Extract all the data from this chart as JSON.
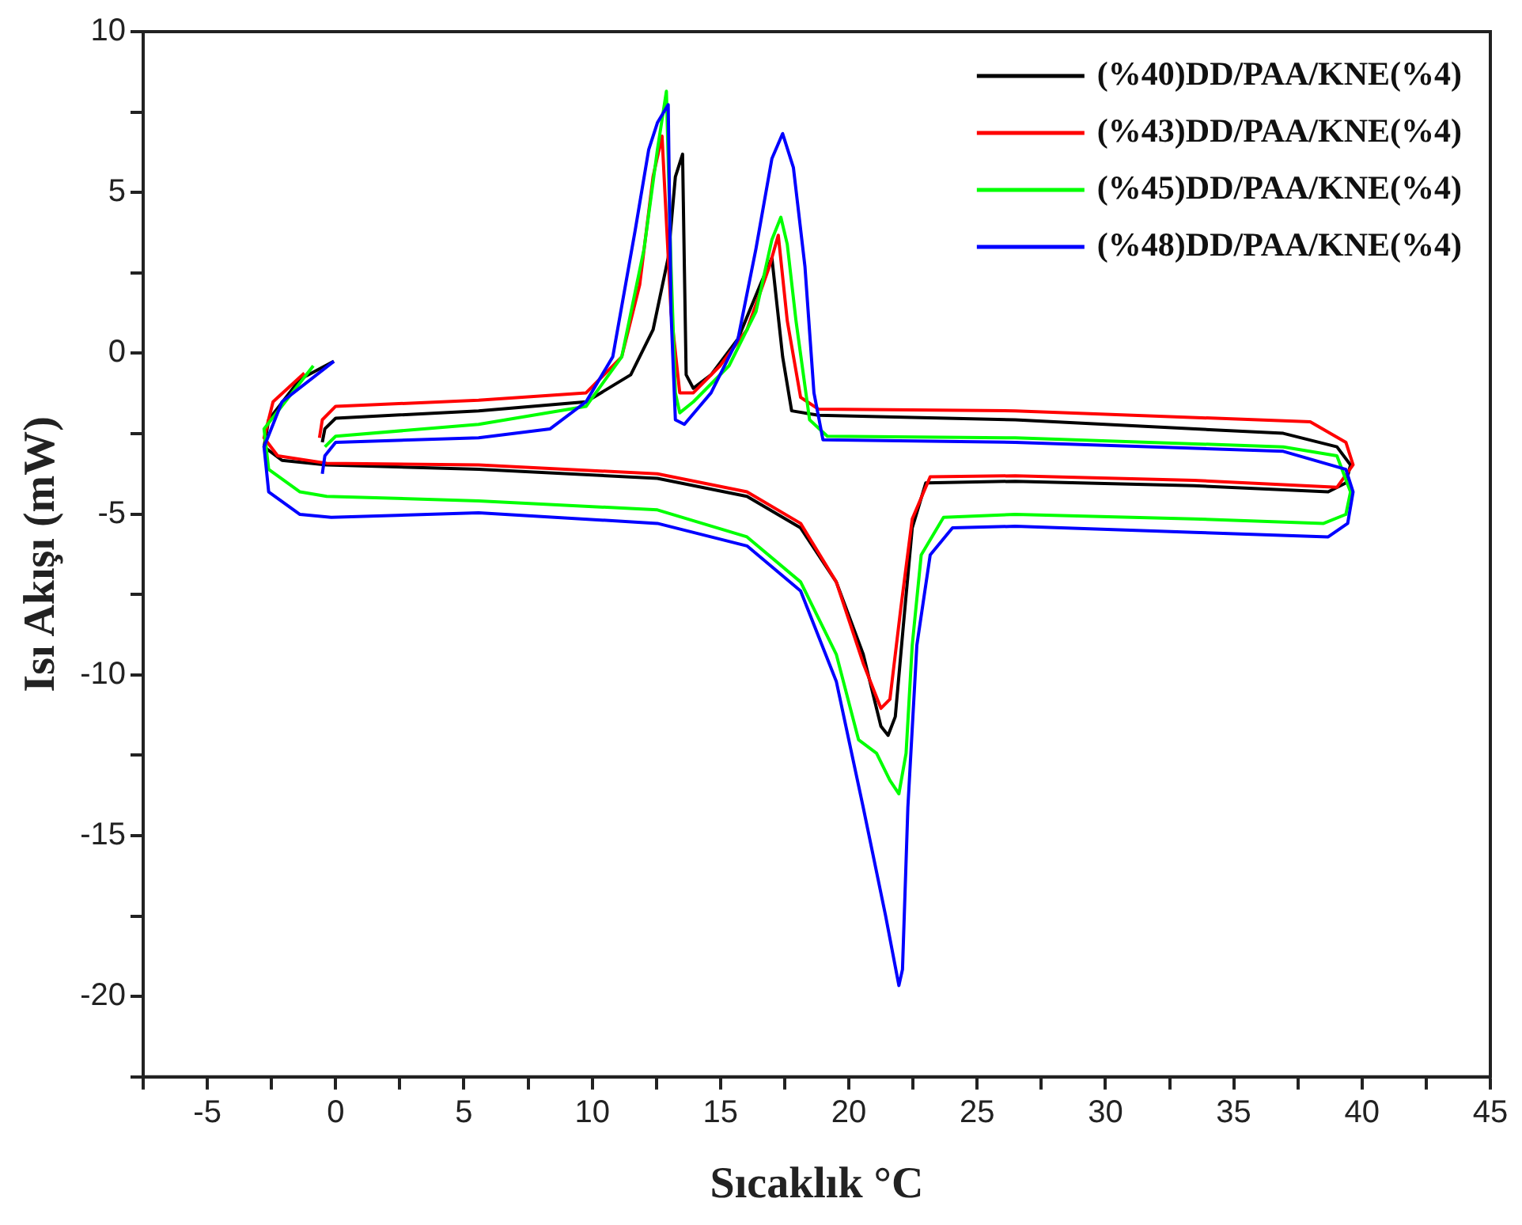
{
  "chart_data": {
    "type": "line",
    "xlabel": "Sıcaklık °C",
    "ylabel": "Isı Akışı (mW)",
    "xlim": [
      -7.5,
      45
    ],
    "ylim": [
      -22.5,
      10
    ],
    "xticks": [
      {
        "value": -7.5,
        "label": null
      },
      -5,
      {
        "value": -2.5,
        "label": null
      },
      0,
      {
        "value": 2.5,
        "label": null
      },
      5,
      {
        "value": 7.5,
        "label": null
      },
      10,
      {
        "value": 12.5,
        "label": null
      },
      15,
      {
        "value": 17.5,
        "label": null
      },
      20,
      {
        "value": 22.5,
        "label": null
      },
      25,
      {
        "value": 27.5,
        "label": null
      },
      30,
      {
        "value": 32.5,
        "label": null
      },
      35,
      {
        "value": 37.5,
        "label": null
      },
      40,
      {
        "value": 42.5,
        "label": null
      },
      45
    ],
    "yticks": [
      {
        "value": -22.5,
        "label": null
      },
      -20,
      {
        "value": -17.5,
        "label": null
      },
      -15,
      {
        "value": -12.5,
        "label": null
      },
      -10,
      {
        "value": -7.5,
        "label": null
      },
      -5,
      {
        "value": -2.5,
        "label": null
      },
      0,
      {
        "value": 2.5,
        "label": null
      },
      5,
      {
        "value": 7.5,
        "label": null
      },
      10
    ],
    "grid": false,
    "legend": "top right",
    "marker": "none",
    "line_style": "solid",
    "series": [
      {
        "name": "(%40)DD/PAA/KNE(%4)",
        "color": "#000000",
        "x": [
          -0.07,
          -1.39,
          -2.61,
          -2.79,
          -2.09,
          -0.35,
          5.57,
          12.54,
          16.03,
          18.12,
          19.51,
          20.56,
          21.25,
          21.53,
          21.81,
          22.12,
          22.47,
          23.0,
          26.48,
          33.45,
          38.68,
          39.37,
          39.55,
          39.02,
          36.93,
          26.48,
          18.82,
          17.77,
          17.42,
          17.0,
          16.55,
          15.68,
          14.63,
          13.94,
          13.66,
          13.59,
          13.52,
          13.24,
          12.96,
          12.37,
          11.5,
          9.76,
          5.57,
          0,
          -0.42,
          -0.52
        ],
        "values": [
          -0.25,
          -0.81,
          -2.07,
          -2.91,
          -3.33,
          -3.47,
          -3.61,
          -3.89,
          -4.45,
          -5.43,
          -7.11,
          -9.36,
          -11.6,
          -11.88,
          -11.3,
          -8.5,
          -5.43,
          -4.03,
          -3.98,
          -4.12,
          -4.31,
          -4.03,
          -3.47,
          -2.91,
          -2.49,
          -2.07,
          -1.93,
          -1.79,
          -0.11,
          2.97,
          2.13,
          0.45,
          -0.67,
          -1.09,
          -0.67,
          2.69,
          6.19,
          5.49,
          2.97,
          0.73,
          -0.67,
          -1.51,
          -1.79,
          -2.02,
          -2.35,
          -2.77
        ]
      },
      {
        "name": "(%43)DD/PAA/KNE(%4)",
        "color": "#ff0000",
        "x": [
          -1.22,
          -2.44,
          -2.79,
          -2.26,
          -0.35,
          5.57,
          12.54,
          16.03,
          18.12,
          19.51,
          20.56,
          21.25,
          21.6,
          22.02,
          22.47,
          23.17,
          26.48,
          33.45,
          39.02,
          39.65,
          39.37,
          37.98,
          26.48,
          18.82,
          18.12,
          17.6,
          17.25,
          16.9,
          16.03,
          14.98,
          13.94,
          13.41,
          13.07,
          12.72,
          12.37,
          11.85,
          11.15,
          9.76,
          5.57,
          0,
          -0.52,
          -0.63
        ],
        "values": [
          -0.62,
          -1.51,
          -2.63,
          -3.19,
          -3.42,
          -3.47,
          -3.75,
          -4.31,
          -5.29,
          -7.11,
          -9.64,
          -11.04,
          -10.76,
          -7.96,
          -5.15,
          -3.84,
          -3.81,
          -3.95,
          -4.17,
          -3.47,
          -2.77,
          -2.13,
          -1.79,
          -1.74,
          -1.37,
          1.01,
          3.67,
          2.69,
          0.73,
          -0.39,
          -1.23,
          -1.23,
          1.29,
          6.75,
          5.49,
          2.13,
          -0.11,
          -1.23,
          -1.46,
          -1.65,
          -2.07,
          -2.63
        ]
      },
      {
        "name": "(%45)DD/PAA/KNE(%4)",
        "color": "#00ff00",
        "x": [
          -0.87,
          -2.79,
          -2.61,
          -1.39,
          -0.35,
          5.57,
          12.54,
          16.03,
          18.12,
          19.51,
          20.38,
          21.08,
          21.6,
          21.95,
          22.23,
          22.47,
          22.82,
          23.69,
          26.48,
          33.45,
          38.5,
          39.37,
          39.55,
          39.02,
          36.93,
          26.48,
          19.16,
          18.47,
          17.94,
          17.6,
          17.35,
          17.0,
          16.38,
          15.33,
          13.94,
          13.41,
          13.24,
          13.07,
          12.89,
          12.54,
          12.02,
          11.15,
          9.76,
          5.57,
          0,
          -0.42
        ],
        "values": [
          -0.39,
          -2.35,
          -3.61,
          -4.31,
          -4.45,
          -4.59,
          -4.87,
          -5.71,
          -7.11,
          -9.36,
          -12.02,
          -12.44,
          -13.28,
          -13.7,
          -12.44,
          -9.08,
          -6.27,
          -5.1,
          -5.01,
          -5.15,
          -5.29,
          -5.01,
          -4.31,
          -3.19,
          -2.91,
          -2.63,
          -2.58,
          -2.07,
          1.01,
          3.39,
          4.23,
          3.53,
          1.29,
          -0.39,
          -1.51,
          -1.85,
          -1.23,
          2.69,
          8.15,
          6.33,
          3.25,
          -0.11,
          -1.65,
          -2.21,
          -2.58,
          -2.91
        ]
      },
      {
        "name": "(%48)DD/PAA/KNE(%4)",
        "color": "#0000ff",
        "x": [
          -0.07,
          -2.09,
          -2.79,
          -2.61,
          -1.39,
          -0.17,
          5.57,
          12.54,
          16.03,
          18.12,
          19.51,
          20.56,
          21.43,
          21.95,
          22.09,
          22.3,
          22.65,
          23.17,
          24.04,
          26.48,
          33.45,
          38.68,
          39.44,
          39.65,
          39.37,
          36.93,
          26.48,
          18.99,
          18.64,
          18.29,
          17.84,
          17.42,
          17.0,
          16.38,
          15.68,
          14.63,
          13.59,
          13.24,
          13.07,
          12.96,
          12.54,
          12.2,
          11.67,
          10.8,
          9.76,
          8.36,
          5.57,
          0,
          -0.42,
          -0.52
        ],
        "values": [
          -0.25,
          -1.51,
          -2.91,
          -4.31,
          -5.01,
          -5.1,
          -4.96,
          -5.29,
          -5.99,
          -7.39,
          -10.2,
          -14.12,
          -17.48,
          -19.66,
          -19.16,
          -14.12,
          -9.08,
          -6.27,
          -5.43,
          -5.38,
          -5.57,
          -5.71,
          -5.29,
          -4.31,
          -3.61,
          -3.05,
          -2.77,
          -2.69,
          -1.23,
          2.69,
          5.77,
          6.83,
          6.05,
          3.25,
          0.45,
          -1.23,
          -2.21,
          -2.07,
          1.29,
          7.73,
          7.17,
          6.33,
          3.81,
          -0.11,
          -1.51,
          -2.35,
          -2.63,
          -2.77,
          -3.19,
          -3.75
        ]
      }
    ]
  }
}
